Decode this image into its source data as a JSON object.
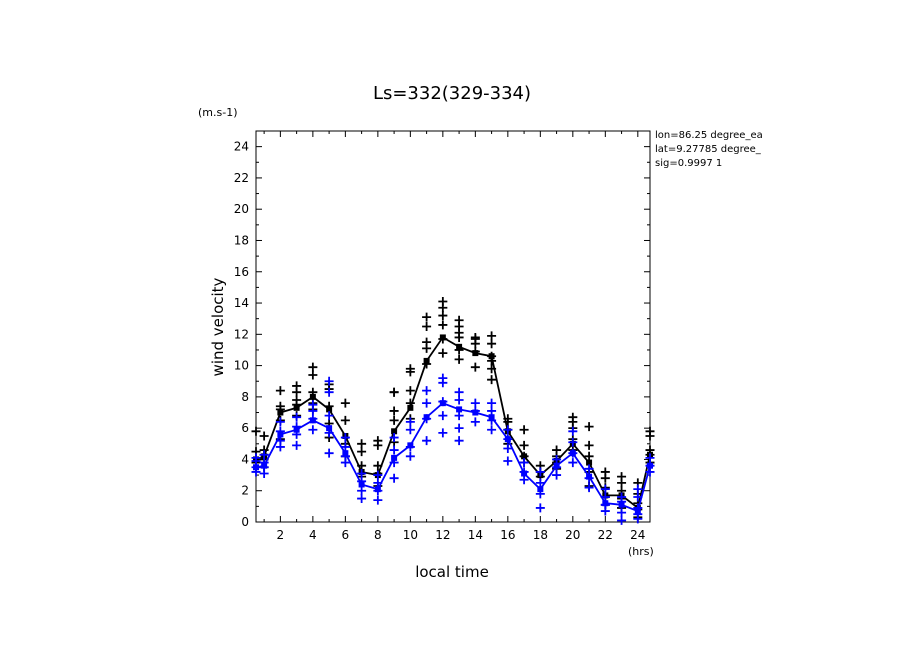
{
  "chart_data": {
    "type": "line",
    "title": "Ls=332(329-334)",
    "ylabel": "wind velocity",
    "yunit": "(m.s-1)",
    "xlabel": "local time",
    "xunit": "(hrs)",
    "xlim": [
      0.5,
      24.75
    ],
    "ylim": [
      0,
      25
    ],
    "x_ticks": [
      2,
      4,
      6,
      8,
      10,
      12,
      14,
      16,
      18,
      20,
      22,
      24
    ],
    "y_ticks": [
      0,
      2,
      4,
      6,
      8,
      10,
      12,
      14,
      16,
      18,
      20,
      22,
      24
    ],
    "info_lines": [
      "lon=86.25 degree_ea",
      "lat=9.27785 degree_",
      "sig=0.9997 1"
    ],
    "colors": {
      "black_series": "#000000",
      "blue_series": "#0000ff"
    },
    "x": [
      0.5,
      1.0,
      2.0,
      3.0,
      4.0,
      5.0,
      6.0,
      7.0,
      8.0,
      9.0,
      10.0,
      11.0,
      12.0,
      13.0,
      14.0,
      15.0,
      16.0,
      17.0,
      18.0,
      19.0,
      20.0,
      21.0,
      22.0,
      23.0,
      24.0,
      24.75
    ],
    "series": [
      {
        "color": "#000000",
        "values": [
          4.0,
          4.2,
          7.0,
          7.3,
          8.0,
          7.2,
          5.5,
          3.2,
          3.0,
          5.8,
          7.3,
          10.3,
          11.8,
          11.2,
          10.8,
          10.6,
          5.8,
          4.2,
          3.0,
          3.9,
          5.0,
          3.8,
          1.7,
          1.7,
          0.9,
          4.3
        ],
        "samples": [
          [
            0.5,
            [
              3.8,
              4.5,
              5.8
            ]
          ],
          [
            1.0,
            [
              3.5,
              4.0,
              4.3,
              4.6,
              5.5
            ]
          ],
          [
            2.0,
            [
              5.3,
              6.5,
              7.2,
              7.4,
              8.4
            ]
          ],
          [
            3.0,
            [
              6.8,
              7.5,
              7.8,
              8.3,
              8.7
            ]
          ],
          [
            4.0,
            [
              7.2,
              7.6,
              8.3,
              9.4,
              9.9
            ]
          ],
          [
            5.0,
            [
              5.4,
              6.3,
              7.4,
              8.5,
              8.8
            ]
          ],
          [
            6.0,
            [
              4.2,
              5.0,
              6.5,
              7.6
            ]
          ],
          [
            7.0,
            [
              2.9,
              3.6,
              4.5,
              5.0
            ]
          ],
          [
            8.0,
            [
              2.3,
              3.1,
              3.6,
              4.9,
              5.2
            ]
          ],
          [
            9.0,
            [
              5.1,
              6.5,
              7.1,
              8.3,
              8.3
            ]
          ],
          [
            10.0,
            [
              6.6,
              7.6,
              8.4,
              9.6,
              9.8
            ]
          ],
          [
            11.0,
            [
              10.1,
              11.1,
              11.5,
              12.5,
              13.1
            ]
          ],
          [
            12.0,
            [
              10.8,
              11.7,
              12.6,
              13.2,
              13.7,
              14.1
            ]
          ],
          [
            13.0,
            [
              10.4,
              11.0,
              11.8,
              12.1,
              12.5,
              12.9
            ]
          ],
          [
            14.0,
            [
              9.9,
              10.9,
              11.4,
              11.7,
              11.8
            ]
          ],
          [
            15.0,
            [
              9.1,
              9.8,
              10.3,
              10.6,
              11.4,
              11.9
            ]
          ],
          [
            16.0,
            [
              5.0,
              5.9,
              6.4,
              6.6
            ]
          ],
          [
            17.0,
            [
              3.8,
              4.2,
              4.9,
              5.9
            ]
          ],
          [
            18.0,
            [
              2.9,
              3.2,
              3.6
            ]
          ],
          [
            19.0,
            [
              3.4,
              3.8,
              4.2,
              4.6
            ]
          ],
          [
            20.0,
            [
              4.6,
              5.3,
              6.0,
              6.4,
              6.7
            ]
          ],
          [
            21.0,
            [
              2.3,
              3.2,
              4.2,
              4.9,
              6.1
            ]
          ],
          [
            22.0,
            [
              1.1,
              1.6,
              2.2,
              2.8,
              3.2
            ]
          ],
          [
            23.0,
            [
              0.9,
              1.5,
              2.0,
              2.5,
              2.9
            ]
          ],
          [
            24.0,
            [
              0.3,
              0.8,
              1.2,
              1.8,
              2.5
            ]
          ],
          [
            24.75,
            [
              3.8,
              4.3,
              4.6,
              5.5,
              5.8
            ]
          ]
        ]
      },
      {
        "color": "#0000ff",
        "values": [
          3.5,
          3.6,
          5.6,
          5.9,
          6.5,
          6.0,
          4.4,
          2.4,
          2.1,
          4.1,
          4.9,
          6.7,
          7.6,
          7.2,
          7.0,
          6.7,
          5.3,
          3.1,
          2.1,
          3.6,
          4.4,
          2.9,
          1.2,
          1.1,
          0.7,
          3.6
        ],
        "samples": [
          [
            0.5,
            [
              3.2,
              3.5,
              3.9,
              4.1
            ]
          ],
          [
            1.0,
            [
              3.1,
              3.5,
              3.8,
              4.3
            ]
          ],
          [
            2.0,
            [
              4.8,
              5.2,
              5.8,
              6.4
            ]
          ],
          [
            3.0,
            [
              4.9,
              5.6,
              6.1,
              6.7
            ]
          ],
          [
            4.0,
            [
              5.9,
              6.6,
              7.1,
              7.5
            ]
          ],
          [
            5.0,
            [
              4.4,
              5.7,
              6.8,
              8.3,
              9.0
            ]
          ],
          [
            6.0,
            [
              3.8,
              4.2,
              4.8,
              5.4
            ]
          ],
          [
            7.0,
            [
              1.5,
              2.0,
              2.6,
              3.1
            ]
          ],
          [
            8.0,
            [
              1.4,
              2.0,
              2.5,
              3.0
            ]
          ],
          [
            9.0,
            [
              2.8,
              3.8,
              4.6,
              5.4
            ]
          ],
          [
            10.0,
            [
              4.2,
              4.8,
              5.9,
              6.4
            ]
          ],
          [
            11.0,
            [
              5.2,
              6.6,
              7.6,
              8.4
            ]
          ],
          [
            12.0,
            [
              5.7,
              6.8,
              7.7,
              8.9,
              9.2
            ]
          ],
          [
            13.0,
            [
              5.2,
              6.0,
              6.8,
              7.8,
              8.3
            ]
          ],
          [
            14.0,
            [
              6.4,
              7.1,
              7.6
            ]
          ],
          [
            15.0,
            [
              5.9,
              6.5,
              7.1,
              7.6
            ]
          ],
          [
            16.0,
            [
              3.9,
              4.7,
              5.3,
              5.9
            ]
          ],
          [
            17.0,
            [
              2.7,
              3.2,
              3.8
            ]
          ],
          [
            18.0,
            [
              0.9,
              1.8,
              2.5,
              3.2
            ]
          ],
          [
            19.0,
            [
              3.0,
              3.5,
              4.0
            ]
          ],
          [
            20.0,
            [
              3.8,
              4.4,
              5.1,
              5.8
            ]
          ],
          [
            21.0,
            [
              2.2,
              2.8,
              3.4
            ]
          ],
          [
            22.0,
            [
              0.7,
              1.1,
              1.6,
              2.1
            ]
          ],
          [
            23.0,
            [
              0.1,
              0.6,
              1.3,
              1.6
            ]
          ],
          [
            24.0,
            [
              0.2,
              0.5,
              0.9,
              1.6,
              2.1
            ]
          ],
          [
            24.75,
            [
              3.2,
              3.6,
              4.1
            ]
          ]
        ]
      }
    ]
  }
}
